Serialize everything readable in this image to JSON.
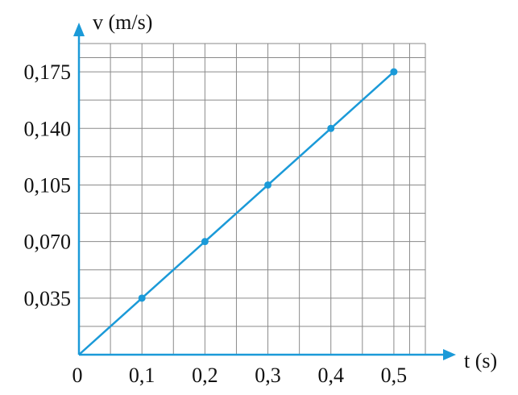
{
  "chart_data": {
    "type": "line",
    "x_label": "t (s)",
    "y_label": "v (m/s)",
    "x": [
      0,
      0.1,
      0.2,
      0.3,
      0.4,
      0.5
    ],
    "series": [
      {
        "name": "v",
        "color": "#1b9ad8",
        "values": [
          0,
          0.035,
          0.07,
          0.105,
          0.14,
          0.175
        ]
      }
    ],
    "xlim": [
      0,
      0.55
    ],
    "ylim": [
      0,
      0.1925
    ],
    "xticks": [
      0,
      {
        "value": 0.1,
        "label": "0,1"
      },
      {
        "value": 0.2,
        "label": "0,2"
      },
      {
        "value": 0.3,
        "label": "0,3"
      },
      {
        "value": 0.4,
        "label": "0,4"
      },
      {
        "value": 0.5,
        "label": "0,5"
      }
    ],
    "yticks": [
      {
        "value": 0.035,
        "label": "0,035"
      },
      {
        "value": 0.07,
        "label": "0,070"
      },
      {
        "value": 0.105,
        "label": "0,105"
      },
      {
        "value": 0.14,
        "label": "0,140"
      },
      {
        "value": 0.175,
        "label": "0,175"
      }
    ],
    "grid": true
  }
}
